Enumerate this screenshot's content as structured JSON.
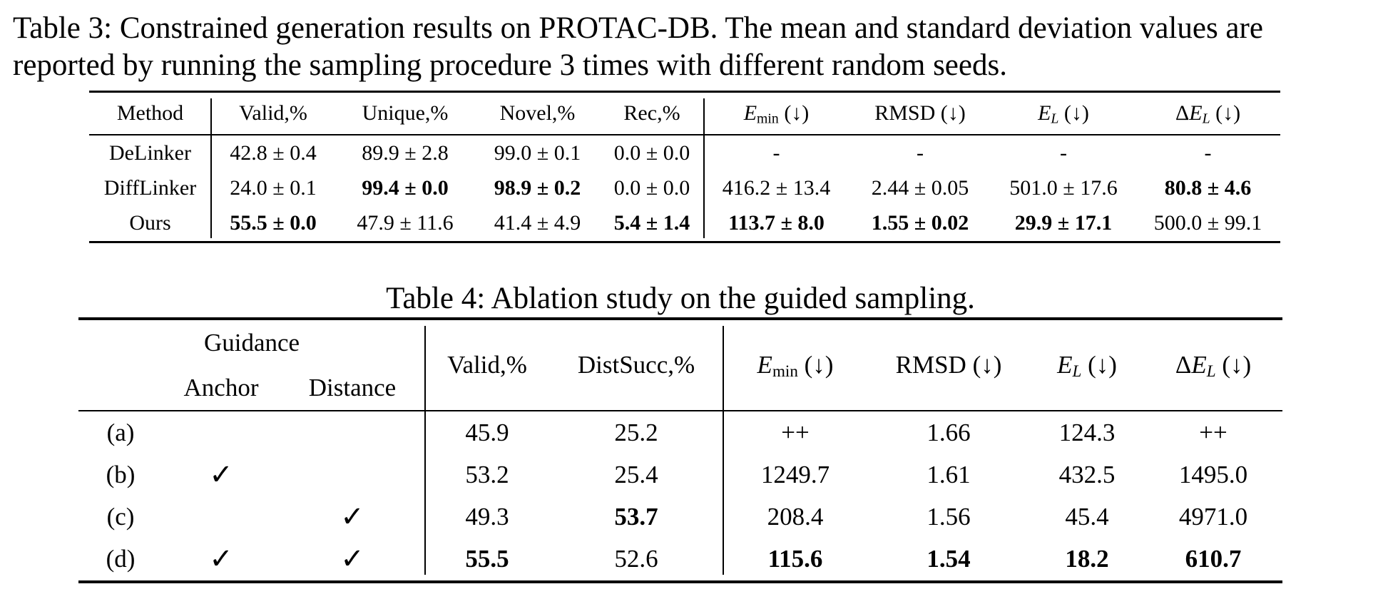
{
  "caption3": {
    "line1": "Table 3: Constrained generation results on PROTAC-DB. The mean and standard deviation values are",
    "line2": "reported by running the sampling procedure 3 times with different random seeds."
  },
  "caption4": "Table 4: Ablation study on the guided sampling.",
  "symbols": {
    "check_mark": "✓",
    "arrow_down": "↓",
    "plus_minus": "±"
  },
  "table3": {
    "col_headers": [
      "Method",
      "Valid,%",
      "Unique,%",
      "Novel,%",
      "Rec,%"
    ],
    "energy_headers": [
      {
        "prefix": "",
        "base": "E",
        "base_italic": true,
        "sub": "min",
        "sub_italic": false,
        "arrow": "(↓)"
      },
      {
        "prefix": "",
        "base": "RMSD",
        "base_italic": false,
        "sub": "",
        "sub_italic": false,
        "arrow": "(↓)"
      },
      {
        "prefix": "",
        "base": "E",
        "base_italic": true,
        "sub": "L",
        "sub_italic": true,
        "arrow": "(↓)"
      },
      {
        "prefix": "Δ",
        "base": "E",
        "base_italic": true,
        "sub": "L",
        "sub_italic": true,
        "arrow": "(↓)"
      }
    ],
    "rows": [
      {
        "method": "DeLinker",
        "cells": [
          {
            "t": "42.8 ± 0.4",
            "b": false
          },
          {
            "t": "89.9 ± 2.8",
            "b": false
          },
          {
            "t": "99.0 ± 0.1",
            "b": false
          },
          {
            "t": "0.0 ± 0.0",
            "b": false
          },
          {
            "t": "-",
            "b": false
          },
          {
            "t": "-",
            "b": false
          },
          {
            "t": "-",
            "b": false
          },
          {
            "t": "-",
            "b": false
          }
        ]
      },
      {
        "method": "DiffLinker",
        "cells": [
          {
            "t": "24.0 ± 0.1",
            "b": false
          },
          {
            "t": "99.4 ± 0.0",
            "b": true
          },
          {
            "t": "98.9 ± 0.2",
            "b": true
          },
          {
            "t": "0.0 ± 0.0",
            "b": false
          },
          {
            "t": "416.2 ± 13.4",
            "b": false
          },
          {
            "t": "2.44 ± 0.05",
            "b": false
          },
          {
            "t": "501.0 ± 17.6",
            "b": false
          },
          {
            "t": "80.8 ± 4.6",
            "b": true
          }
        ]
      },
      {
        "method": "Ours",
        "cells": [
          {
            "t": "55.5 ± 0.0",
            "b": true
          },
          {
            "t": "47.9 ± 11.6",
            "b": false
          },
          {
            "t": "41.4 ± 4.9",
            "b": false
          },
          {
            "t": "5.4 ± 1.4",
            "b": true
          },
          {
            "t": "113.7 ± 8.0",
            "b": true
          },
          {
            "t": "1.55 ± 0.02",
            "b": true
          },
          {
            "t": "29.9 ± 17.1",
            "b": true
          },
          {
            "t": "500.0 ± 99.1",
            "b": false
          }
        ]
      }
    ]
  },
  "table4": {
    "group_header": "Guidance",
    "sub_headers": [
      "Anchor",
      "Distance"
    ],
    "col_headers": [
      "Valid,%",
      "DistSucc,%"
    ],
    "energy_headers": [
      {
        "prefix": "",
        "base": "E",
        "base_italic": true,
        "sub": "min",
        "sub_italic": false,
        "arrow": "(↓)"
      },
      {
        "prefix": "",
        "base": "RMSD",
        "base_italic": false,
        "sub": "",
        "sub_italic": false,
        "arrow": "(↓)"
      },
      {
        "prefix": "",
        "base": "E",
        "base_italic": true,
        "sub": "L",
        "sub_italic": true,
        "arrow": "(↓)"
      },
      {
        "prefix": "Δ",
        "base": "E",
        "base_italic": true,
        "sub": "L",
        "sub_italic": true,
        "arrow": "(↓)"
      }
    ],
    "rows": [
      {
        "label": "(a)",
        "anchor": false,
        "distance": false,
        "cells": [
          {
            "t": "45.9",
            "b": false
          },
          {
            "t": "25.2",
            "b": false
          },
          {
            "t": "++",
            "b": false
          },
          {
            "t": "1.66",
            "b": false
          },
          {
            "t": "124.3",
            "b": false
          },
          {
            "t": "++",
            "b": false
          }
        ]
      },
      {
        "label": "(b)",
        "anchor": true,
        "distance": false,
        "cells": [
          {
            "t": "53.2",
            "b": false
          },
          {
            "t": "25.4",
            "b": false
          },
          {
            "t": "1249.7",
            "b": false
          },
          {
            "t": "1.61",
            "b": false
          },
          {
            "t": "432.5",
            "b": false
          },
          {
            "t": "1495.0",
            "b": false
          }
        ]
      },
      {
        "label": "(c)",
        "anchor": false,
        "distance": true,
        "cells": [
          {
            "t": "49.3",
            "b": false
          },
          {
            "t": "53.7",
            "b": true
          },
          {
            "t": "208.4",
            "b": false
          },
          {
            "t": "1.56",
            "b": false
          },
          {
            "t": "45.4",
            "b": false
          },
          {
            "t": "4971.0",
            "b": false
          }
        ]
      },
      {
        "label": "(d)",
        "anchor": true,
        "distance": true,
        "cells": [
          {
            "t": "55.5",
            "b": true
          },
          {
            "t": "52.6",
            "b": false
          },
          {
            "t": "115.6",
            "b": true
          },
          {
            "t": "1.54",
            "b": true
          },
          {
            "t": "18.2",
            "b": true
          },
          {
            "t": "610.7",
            "b": true
          }
        ]
      }
    ]
  }
}
